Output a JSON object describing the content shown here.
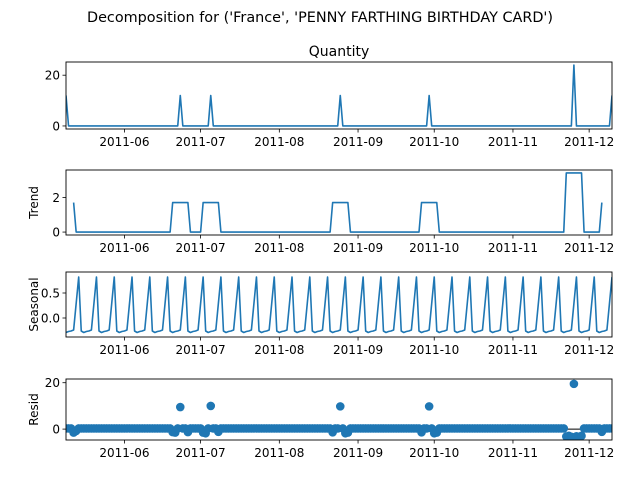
{
  "figure": {
    "suptitle": "Decomposition for ('France', 'PENNY FARTHING BIRTHDAY CARD')"
  },
  "colors": {
    "line": "#1f77b4",
    "axis": "#000000",
    "background": "#ffffff"
  },
  "chart_data": [
    {
      "type": "line",
      "title": "Quantity",
      "ylabel": "",
      "ylim": [
        -1.2,
        25.2
      ],
      "yticks": [
        0,
        20
      ],
      "xlim": [
        "2011-05-09",
        "2011-12-10"
      ],
      "xtick_labels": [
        "2011-06",
        "2011-07",
        "2011-08",
        "2011-09",
        "2011-10",
        "2011-11",
        "2011-12"
      ],
      "series": [
        {
          "points": [
            [
              "2011-05-09",
              12
            ],
            [
              "2011-05-10",
              0
            ],
            [
              "2011-06-22",
              0
            ],
            [
              "2011-06-23",
              12
            ],
            [
              "2011-06-24",
              0
            ],
            [
              "2011-07-04",
              0
            ],
            [
              "2011-07-05",
              12
            ],
            [
              "2011-07-06",
              0
            ],
            [
              "2011-08-24",
              0
            ],
            [
              "2011-08-25",
              12
            ],
            [
              "2011-08-26",
              0
            ],
            [
              "2011-09-28",
              0
            ],
            [
              "2011-09-29",
              12
            ],
            [
              "2011-09-30",
              0
            ],
            [
              "2011-11-24",
              0
            ],
            [
              "2011-11-25",
              24
            ],
            [
              "2011-11-26",
              0
            ],
            [
              "2011-12-09",
              0
            ],
            [
              "2011-12-10",
              12
            ]
          ]
        }
      ]
    },
    {
      "type": "line",
      "title": "",
      "ylabel": "Trend",
      "ylim": [
        -0.17,
        3.6
      ],
      "yticks": [
        0,
        2
      ],
      "xlim": [
        "2011-05-09",
        "2011-12-10"
      ],
      "xtick_labels": [
        "2011-06",
        "2011-07",
        "2011-08",
        "2011-09",
        "2011-10",
        "2011-11",
        "2011-12"
      ],
      "series": [
        {
          "points": [
            [
              "2011-05-12",
              1.71
            ],
            [
              "2011-05-13",
              0
            ],
            [
              "2011-06-19",
              0
            ],
            [
              "2011-06-20",
              1.71
            ],
            [
              "2011-06-26",
              1.71
            ],
            [
              "2011-06-27",
              0
            ],
            [
              "2011-07-01",
              0
            ],
            [
              "2011-07-02",
              1.71
            ],
            [
              "2011-07-08",
              1.71
            ],
            [
              "2011-07-09",
              0
            ],
            [
              "2011-08-21",
              0
            ],
            [
              "2011-08-22",
              1.71
            ],
            [
              "2011-08-28",
              1.71
            ],
            [
              "2011-08-29",
              0
            ],
            [
              "2011-09-25",
              0
            ],
            [
              "2011-09-26",
              1.71
            ],
            [
              "2011-10-02",
              1.71
            ],
            [
              "2011-10-03",
              0
            ],
            [
              "2011-11-21",
              0
            ],
            [
              "2011-11-22",
              3.43
            ],
            [
              "2011-11-28",
              3.43
            ],
            [
              "2011-11-29",
              0
            ],
            [
              "2011-12-05",
              0
            ],
            [
              "2011-12-06",
              1.71
            ]
          ]
        }
      ]
    },
    {
      "type": "line",
      "title": "",
      "ylabel": "Seasonal",
      "ylim": [
        -0.38,
        0.92
      ],
      "yticks": [
        0.0,
        0.5
      ],
      "ytick_labels": [
        "0.0",
        "0.5"
      ],
      "xlim": [
        "2011-05-09",
        "2011-12-10"
      ],
      "xtick_labels": [
        "2011-06",
        "2011-07",
        "2011-08",
        "2011-09",
        "2011-10",
        "2011-11",
        "2011-12"
      ],
      "seasonal_period_days": 7,
      "seasonal_pattern": [
        -0.29,
        -0.27,
        -0.26,
        -0.24,
        0.29,
        0.82,
        -0.26
      ],
      "series": [
        {
          "start": "2011-05-09",
          "end": "2011-12-10"
        }
      ]
    },
    {
      "type": "scatter",
      "title": "",
      "ylabel": "Resid",
      "ylim": [
        -4.7,
        21.6
      ],
      "yticks": [
        0,
        20
      ],
      "baseline": 0,
      "xlim": [
        "2011-05-09",
        "2011-12-10"
      ],
      "xtick_labels": [
        "2011-06",
        "2011-07",
        "2011-08",
        "2011-09",
        "2011-10",
        "2011-11",
        "2011-12"
      ],
      "default_resid": 0.3,
      "outliers": [
        [
          "2011-06-23",
          9.5
        ],
        [
          "2011-07-05",
          10.0
        ],
        [
          "2011-08-25",
          9.8
        ],
        [
          "2011-09-29",
          9.8
        ],
        [
          "2011-11-25",
          19.5
        ],
        [
          "2011-05-12",
          -1.5
        ],
        [
          "2011-05-13",
          -0.8
        ],
        [
          "2011-06-20",
          -1.3
        ],
        [
          "2011-06-21",
          -1.5
        ],
        [
          "2011-06-26",
          -1.3
        ],
        [
          "2011-07-02",
          -1.5
        ],
        [
          "2011-07-03",
          -1.8
        ],
        [
          "2011-07-08",
          -1.2
        ],
        [
          "2011-08-22",
          -1.4
        ],
        [
          "2011-08-27",
          -1.8
        ],
        [
          "2011-08-28",
          -1.5
        ],
        [
          "2011-09-26",
          -1.4
        ],
        [
          "2011-10-01",
          -1.8
        ],
        [
          "2011-10-02",
          -1.5
        ],
        [
          "2011-11-22",
          -3.2
        ],
        [
          "2011-11-23",
          -2.9
        ],
        [
          "2011-11-24",
          -3.3
        ],
        [
          "2011-11-26",
          -3.1
        ],
        [
          "2011-11-27",
          -3.4
        ],
        [
          "2011-11-28",
          -2.9
        ],
        [
          "2011-12-06",
          -1.2
        ]
      ]
    }
  ]
}
